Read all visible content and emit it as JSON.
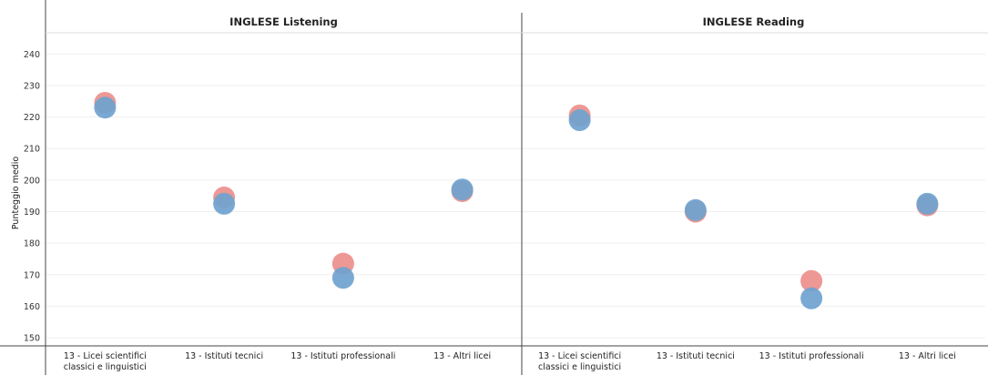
{
  "chart_data": {
    "type": "scatter",
    "ylabel": "Punteggio medio",
    "ylim": [
      148,
      245
    ],
    "yticks": [
      150,
      160,
      170,
      180,
      190,
      200,
      210,
      220,
      230,
      240
    ],
    "grid": true,
    "categories": [
      [
        "13 - Licei scientifici",
        "classici e linguistici"
      ],
      [
        "13 - Istituti tecnici"
      ],
      [
        "13 - Istituti professionali"
      ],
      [
        "13 - Altri licei"
      ]
    ],
    "colors": {
      "red": "#eb8f8c",
      "blue": "#6fa3cf"
    },
    "panels": [
      {
        "title": "INGLESE Listening",
        "series": [
          {
            "color": "red",
            "values": [
              224.5,
              194.5,
              173.5,
              196.5
            ]
          },
          {
            "color": "blue",
            "values": [
              223.0,
              192.5,
              169.0,
              197.0
            ]
          }
        ]
      },
      {
        "title": "INGLESE Reading",
        "series": [
          {
            "color": "red",
            "values": [
              220.5,
              190.0,
              168.0,
              192.0
            ]
          },
          {
            "color": "blue",
            "values": [
              219.0,
              190.5,
              162.5,
              192.5
            ]
          }
        ]
      }
    ]
  }
}
